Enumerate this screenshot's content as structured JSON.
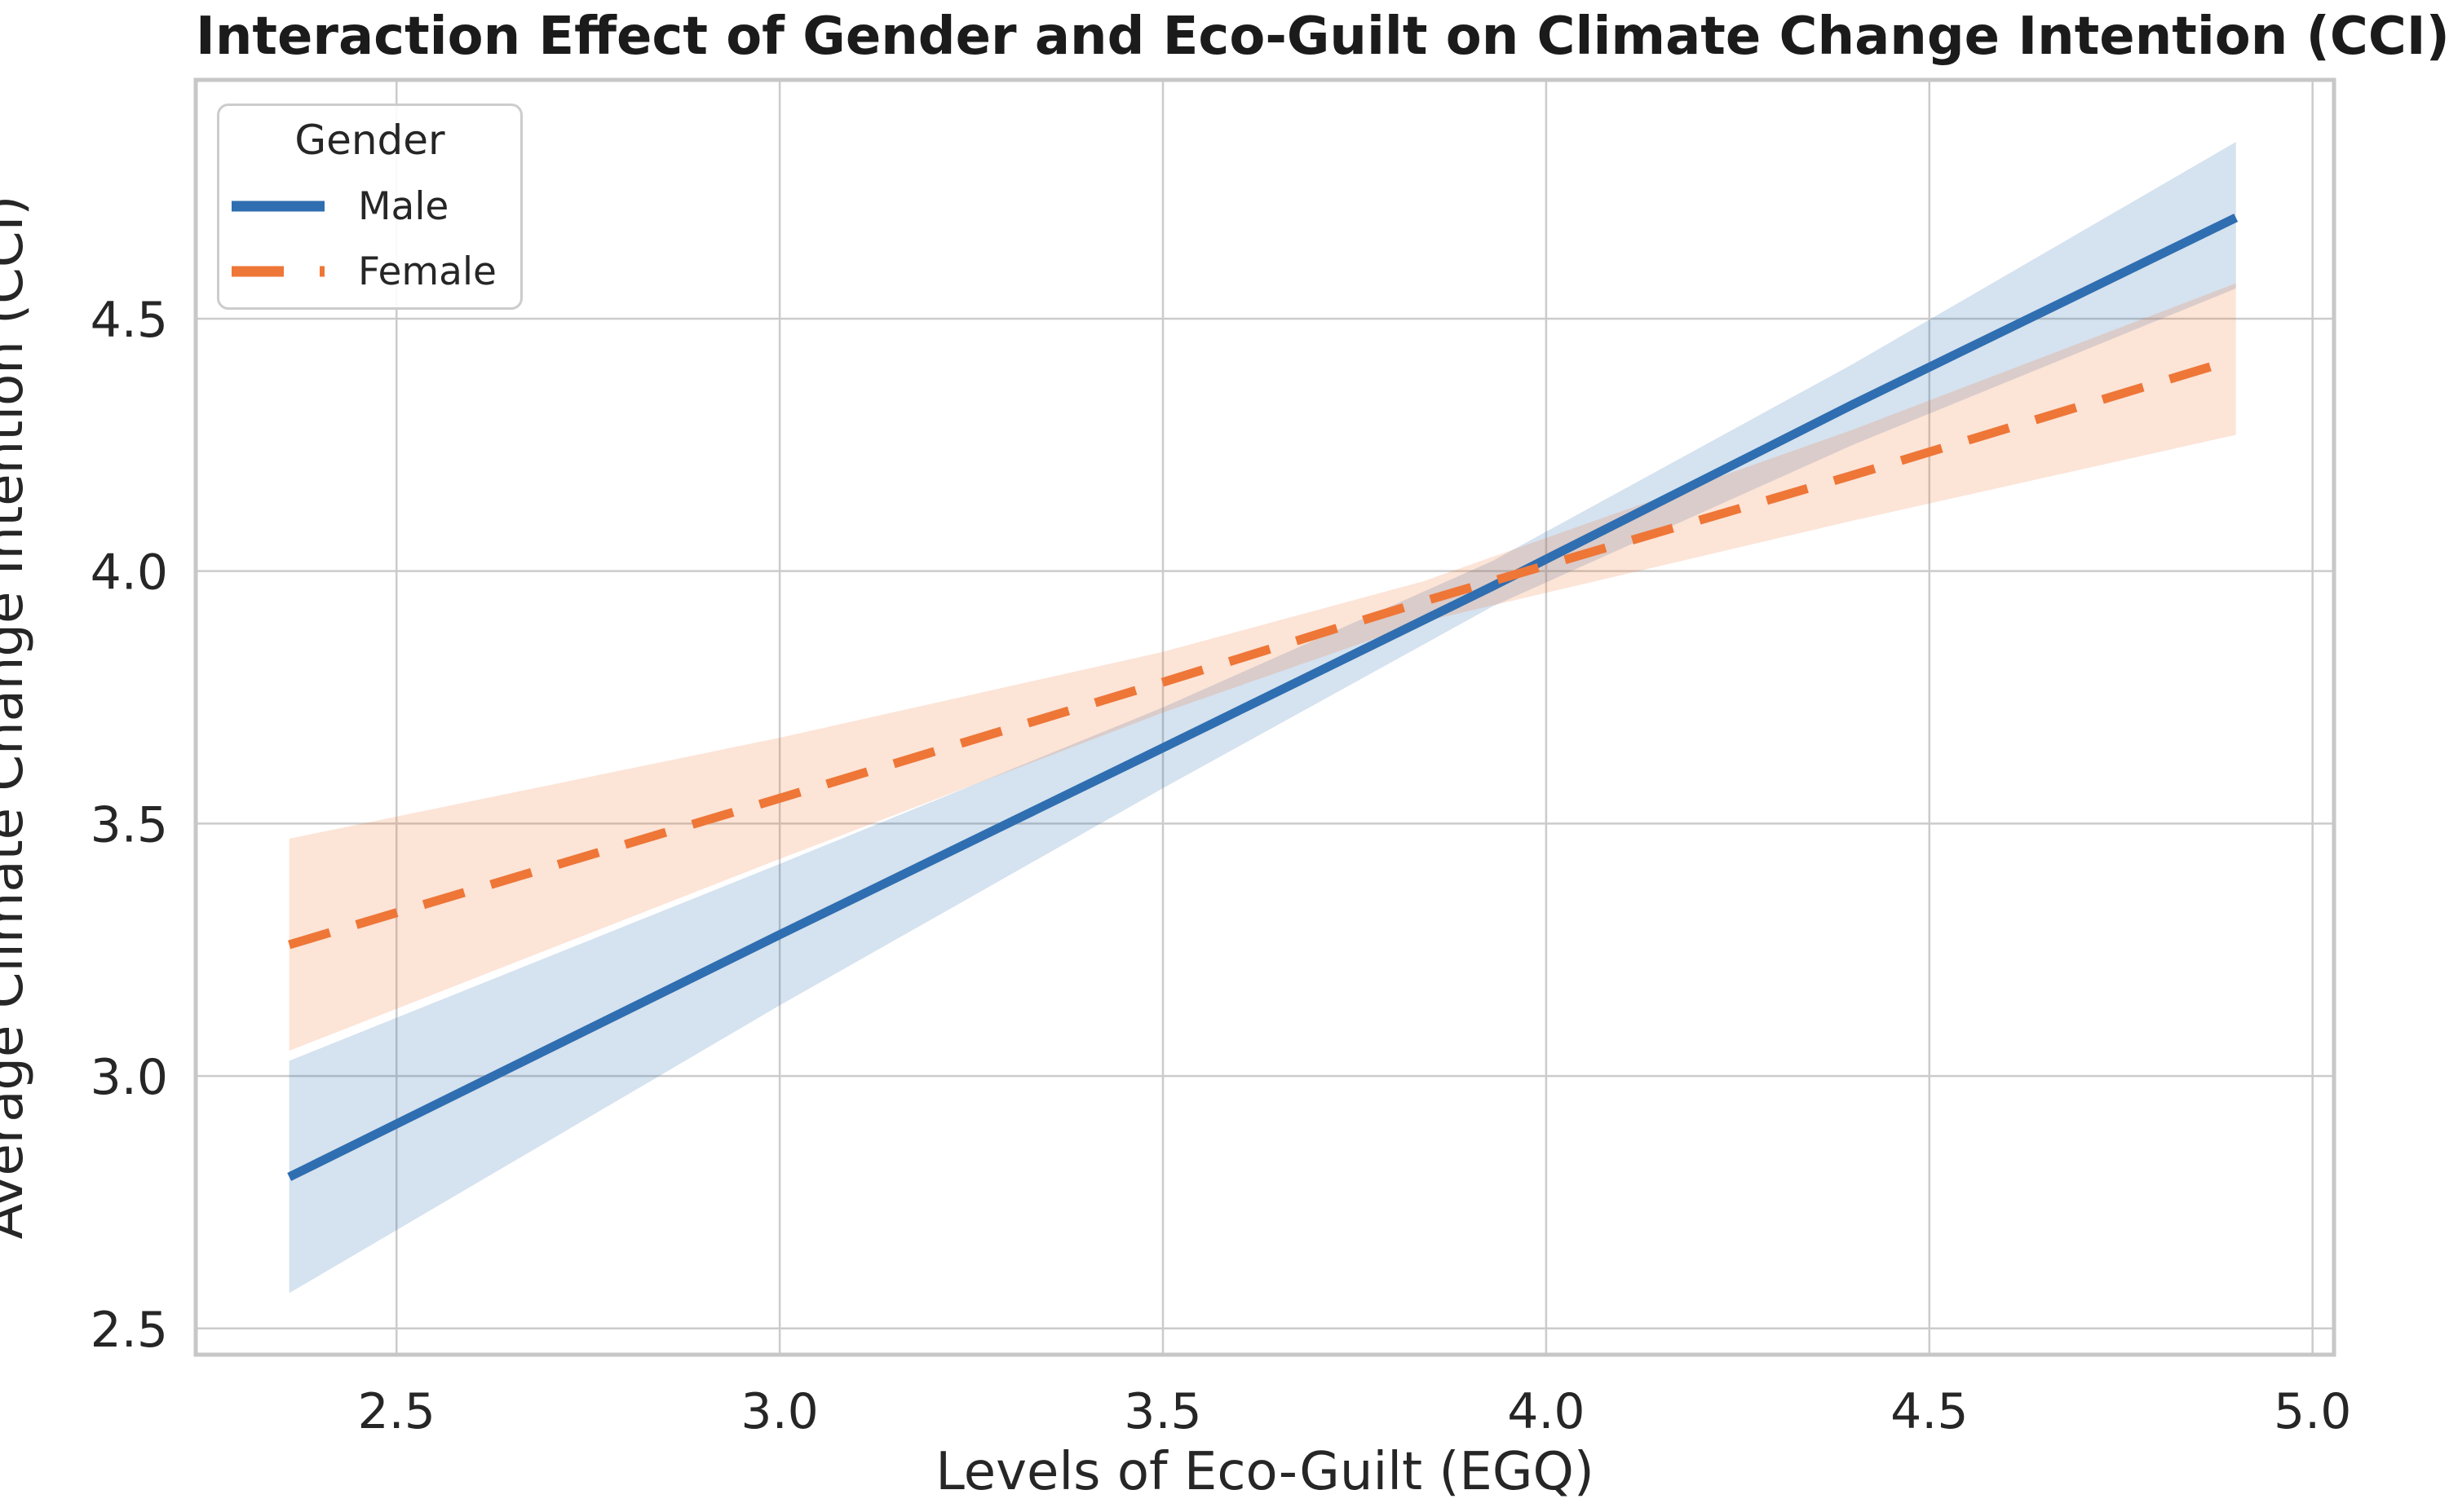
{
  "chart_data": {
    "type": "line",
    "title": "Interaction Effect of Gender and Eco-Guilt on Climate Change Intention (CCI)",
    "xlabel": "Levels of Eco-Guilt (EGQ)",
    "ylabel": "Average Climate Change Intention (CCI)",
    "xlim": [
      2.238,
      5.028
    ],
    "ylim": [
      2.448,
      4.973
    ],
    "x_ticks": [
      {
        "v": 2.5,
        "label": "2.5"
      },
      {
        "v": 3.0,
        "label": "3.0"
      },
      {
        "v": 3.5,
        "label": "3.5"
      },
      {
        "v": 4.0,
        "label": "4.0"
      },
      {
        "v": 4.5,
        "label": "4.5"
      },
      {
        "v": 5.0,
        "label": "5.0"
      }
    ],
    "y_ticks": [
      {
        "v": 2.5,
        "label": "2.5"
      },
      {
        "v": 3.0,
        "label": "3.0"
      },
      {
        "v": 3.5,
        "label": "3.5"
      },
      {
        "v": 4.0,
        "label": "4.0"
      },
      {
        "v": 4.5,
        "label": "4.5"
      }
    ],
    "grid": true,
    "legend": {
      "title": "Gender",
      "position": "upper left",
      "entries": [
        {
          "label": "Male",
          "linestyle": "solid"
        },
        {
          "label": "Female",
          "linestyle": "dashed"
        }
      ]
    },
    "style": {
      "grid_color": "#cbcbcb",
      "spine_color": "#c7c7c7",
      "band_opacity": 0.2,
      "text_color": "#262626",
      "background": "#ffffff"
    },
    "series": [
      {
        "name": "Male",
        "color": "#2f6eb0",
        "linestyle": "solid",
        "x": [
          2.36,
          3.0,
          3.5,
          3.93,
          4.4,
          4.9
        ],
        "y": [
          2.8,
          3.28,
          3.65,
          3.97,
          4.33,
          4.7
        ],
        "ci_lower": [
          2.57,
          3.14,
          3.57,
          3.93,
          4.25,
          4.56
        ],
        "ci_upper": [
          3.03,
          3.42,
          3.73,
          4.02,
          4.41,
          4.85
        ]
      },
      {
        "name": "Female",
        "color": "#ee7637",
        "linestyle": "dashed",
        "x": [
          2.36,
          3.0,
          3.5,
          3.84,
          4.4,
          4.9
        ],
        "y": [
          3.26,
          3.55,
          3.78,
          3.94,
          4.19,
          4.42
        ],
        "ci_lower": [
          3.05,
          3.43,
          3.72,
          3.9,
          4.1,
          4.27
        ],
        "ci_upper": [
          3.47,
          3.67,
          3.84,
          3.98,
          4.28,
          4.57
        ]
      }
    ]
  }
}
